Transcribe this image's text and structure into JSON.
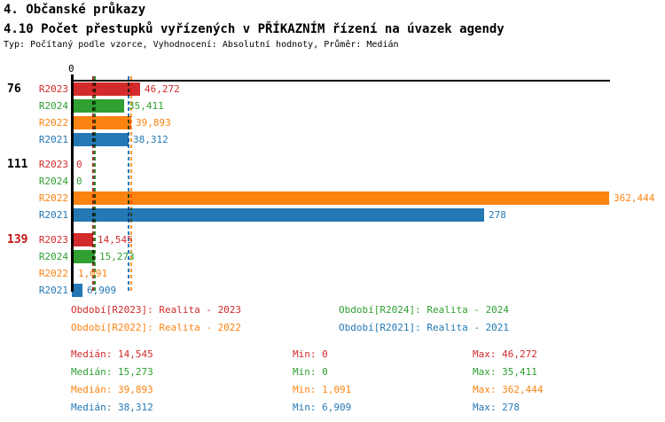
{
  "header": {
    "title_line1": "4. Občanské průkazy",
    "title_line2": "4.10 Počet přestupků vyřízených v PŘÍKAZNÍM řízení na úvazek agendy",
    "subtitle": "Typ: Počítaný podle vzorce, Vyhodnocení: Absolutní hodnoty, Průměr: Medián"
  },
  "chart_data": {
    "type": "bar",
    "orientation": "horizontal",
    "grid": false,
    "xlim": [
      0,
      362.444
    ],
    "x_ticks": [
      {
        "value": 0,
        "label": "0"
      }
    ],
    "axis_zero_label": "0",
    "series_colors": {
      "R2023": "#d32b2b",
      "R2024": "#30a033",
      "R2022": "#fb8312",
      "R2021": "#2478b4"
    },
    "median_line_colors": {
      "R2023": "#a03232",
      "R2024": "#2f8a2f",
      "R2022": "#fb9a33",
      "R2021": "#2478b4"
    },
    "groups": [
      {
        "id": "76",
        "id_color": "#000000",
        "bars": [
          {
            "series": "R2023",
            "value": 46.272,
            "display": "46,272"
          },
          {
            "series": "R2024",
            "value": 35.411,
            "display": "35,411"
          },
          {
            "series": "R2022",
            "value": 39.893,
            "display": "39,893"
          },
          {
            "series": "R2021",
            "value": 38.312,
            "display": "38,312"
          }
        ]
      },
      {
        "id": "111",
        "id_color": "#000000",
        "bars": [
          {
            "series": "R2023",
            "value": 0,
            "display": "0"
          },
          {
            "series": "R2024",
            "value": 0,
            "display": "0"
          },
          {
            "series": "R2022",
            "value": 362.444,
            "display": "362,444"
          },
          {
            "series": "R2021",
            "value": 278,
            "display": "278"
          }
        ]
      },
      {
        "id": "139",
        "id_color": "#c41414",
        "bars": [
          {
            "series": "R2023",
            "value": 14.545,
            "display": "14,545"
          },
          {
            "series": "R2024",
            "value": 15.273,
            "display": "15,273"
          },
          {
            "series": "R2022",
            "value": 1.091,
            "display": "1,091"
          },
          {
            "series": "R2021",
            "value": 6.909,
            "display": "6,909"
          }
        ]
      }
    ],
    "medians": [
      {
        "series": "R2023",
        "value": 14.545
      },
      {
        "series": "R2024",
        "value": 15.273
      },
      {
        "series": "R2022",
        "value": 39.893
      },
      {
        "series": "R2021",
        "value": 38.312
      }
    ],
    "legend_position": "bottom"
  },
  "legend": {
    "items": [
      {
        "series": "R2023",
        "text": "Období[R2023]: Realita - 2023"
      },
      {
        "series": "R2024",
        "text": "Období[R2024]: Realita - 2024"
      },
      {
        "series": "R2022",
        "text": "Období[R2022]: Realita - 2022"
      },
      {
        "series": "R2021",
        "text": "Období[R2021]: Realita - 2021"
      }
    ]
  },
  "stats": {
    "rows": [
      {
        "series": "R2023",
        "median": "Medián: 14,545",
        "min": "Min: 0",
        "max": "Max: 46,272"
      },
      {
        "series": "R2024",
        "median": "Medián: 15,273",
        "min": "Min: 0",
        "max": "Max: 35,411"
      },
      {
        "series": "R2022",
        "median": "Medián: 39,893",
        "min": "Min: 1,091",
        "max": "Max: 362,444"
      },
      {
        "series": "R2021",
        "median": "Medián: 38,312",
        "min": "Min: 6,909",
        "max": "Max: 278"
      }
    ]
  }
}
